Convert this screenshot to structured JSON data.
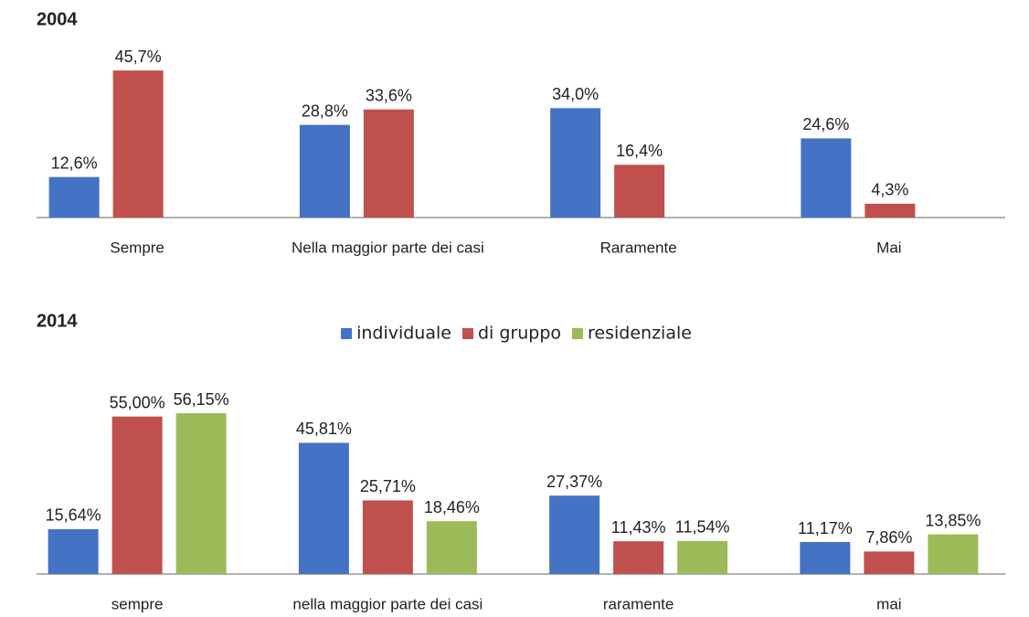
{
  "chart_data": [
    {
      "type": "bar",
      "title": "2004",
      "categories": [
        "Sempre",
        "Nella maggior parte dei casi",
        "Raramente",
        "Mai"
      ],
      "series": [
        {
          "color": "#4472c4",
          "values": [
            12.6,
            28.8,
            34.0,
            24.6
          ],
          "value_labels": [
            "12,6%",
            "28,8%",
            "34,0%",
            "24,6%"
          ]
        },
        {
          "color": "#c0504d",
          "values": [
            45.7,
            33.6,
            16.4,
            4.3
          ],
          "value_labels": [
            "45,7%",
            "33,6%",
            "16,4%",
            "4,3%"
          ]
        }
      ],
      "ylim": [
        0,
        50
      ]
    },
    {
      "type": "bar",
      "title": "2014",
      "categories": [
        "sempre",
        "nella maggior parte dei casi",
        "raramente",
        "mai"
      ],
      "series": [
        {
          "name": "individuale",
          "color": "#4472c4",
          "values": [
            15.64,
            45.81,
            27.37,
            11.17
          ],
          "value_labels": [
            "15,64%",
            "45,81%",
            "27,37%",
            "11,17%"
          ]
        },
        {
          "name": "di gruppo",
          "color": "#c0504d",
          "values": [
            55.0,
            25.71,
            11.43,
            7.86
          ],
          "value_labels": [
            "55,00%",
            "25,71%",
            "11,43%",
            "7,86%"
          ]
        },
        {
          "name": "residenziale",
          "color": "#9bbb59",
          "values": [
            56.15,
            18.46,
            11.54,
            13.85
          ],
          "value_labels": [
            "56,15%",
            "18,46%",
            "11,54%",
            "13,85%"
          ]
        }
      ],
      "ylim": [
        0,
        60
      ],
      "legend": "top"
    }
  ]
}
